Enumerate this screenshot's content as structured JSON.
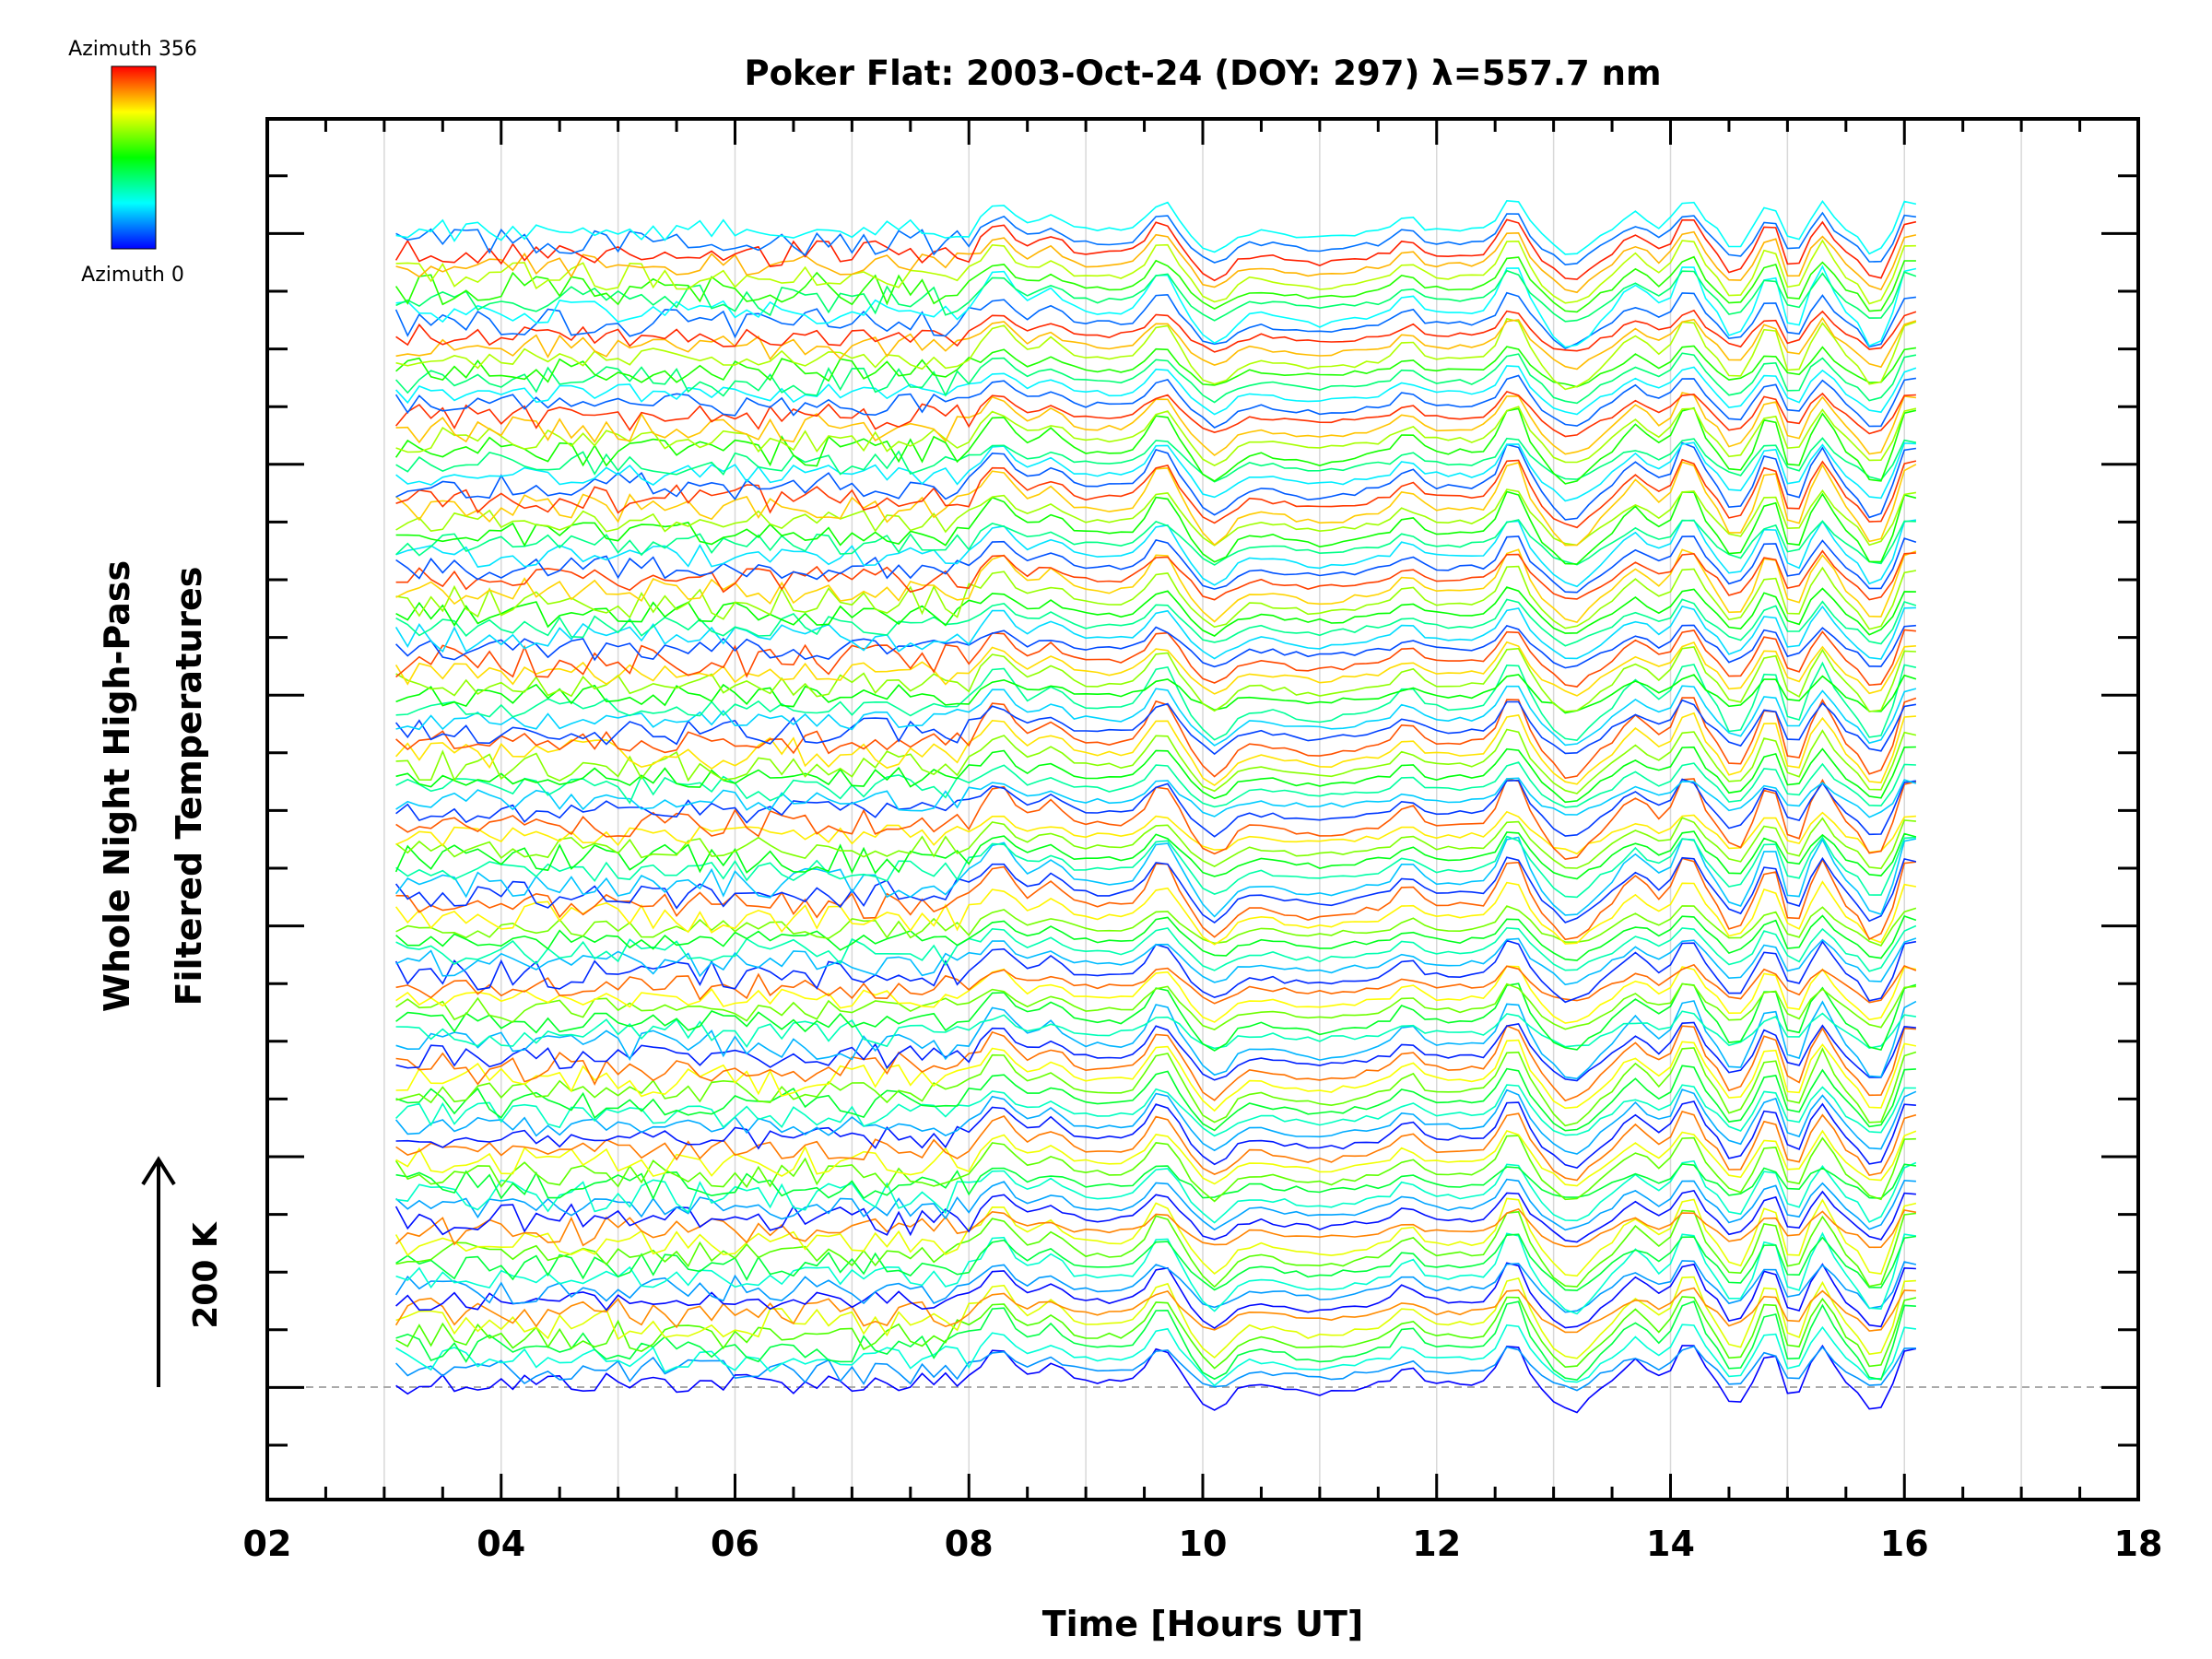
{
  "chart_data": {
    "type": "line",
    "title": "Poker Flat: 2003-Oct-24 (DOY: 297) λ=557.7 nm",
    "xlabel": "Time [Hours UT]",
    "ylabel_line1": "Whole Night High-Pass",
    "ylabel_line2": "Filtered Temperatures",
    "xlim": [
      2,
      18
    ],
    "x_tick_labels": [
      "02",
      "04",
      "06",
      "08",
      "10",
      "12",
      "14",
      "16",
      "18"
    ],
    "vertical_grid": true,
    "scale_label": "200 K",
    "baseline_dashed": true,
    "data_time_range": [
      3.1,
      16.15
    ],
    "series_count": 100,
    "colorbar": {
      "label_top": "Azimuth 356",
      "label_bottom": "Azimuth 0",
      "min": 0,
      "max": 356,
      "colormap": "rainbow"
    }
  }
}
